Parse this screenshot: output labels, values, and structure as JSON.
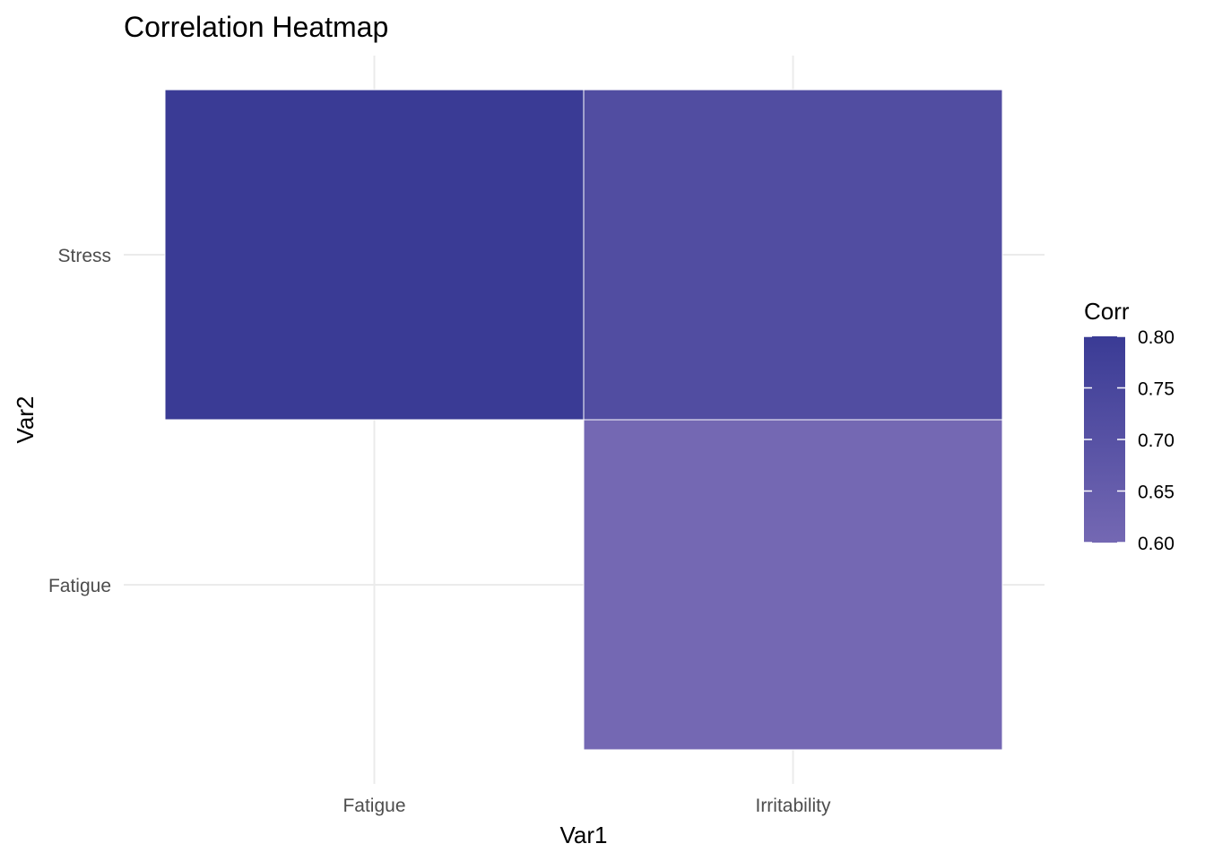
{
  "chart_data": {
    "type": "heatmap",
    "title": "Correlation Heatmap",
    "xlabel": "Var1",
    "ylabel": "Var2",
    "x_categories": [
      "Fatigue",
      "Irritability"
    ],
    "y_categories": [
      "Fatigue",
      "Stress"
    ],
    "cells": [
      {
        "x": "Fatigue",
        "y": "Stress",
        "value": 0.8
      },
      {
        "x": "Irritability",
        "y": "Stress",
        "value": 0.72
      },
      {
        "x": "Irritability",
        "y": "Fatigue",
        "value": 0.6
      }
    ],
    "legend": {
      "title": "Corr",
      "breaks": [
        0.8,
        0.75,
        0.7,
        0.65,
        0.6
      ],
      "break_labels": [
        "0.80",
        "0.75",
        "0.70",
        "0.65",
        "0.60"
      ],
      "range": [
        0.6,
        0.8
      ],
      "low_color": "#7468b3",
      "high_color": "#3a3b95"
    },
    "grid": true
  }
}
